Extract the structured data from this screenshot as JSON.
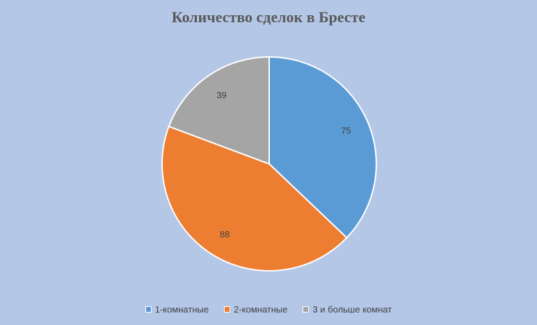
{
  "chart_data": {
    "type": "pie",
    "title": "Количество сделок в Бресте",
    "categories": [
      "1-комнатные",
      "2-комнатные",
      "3 и больше комнат"
    ],
    "values": [
      75,
      88,
      39
    ],
    "colors": [
      "#5b9bd5",
      "#ed7d31",
      "#a5a5a5"
    ],
    "legend_position": "bottom",
    "data_labels": true
  }
}
